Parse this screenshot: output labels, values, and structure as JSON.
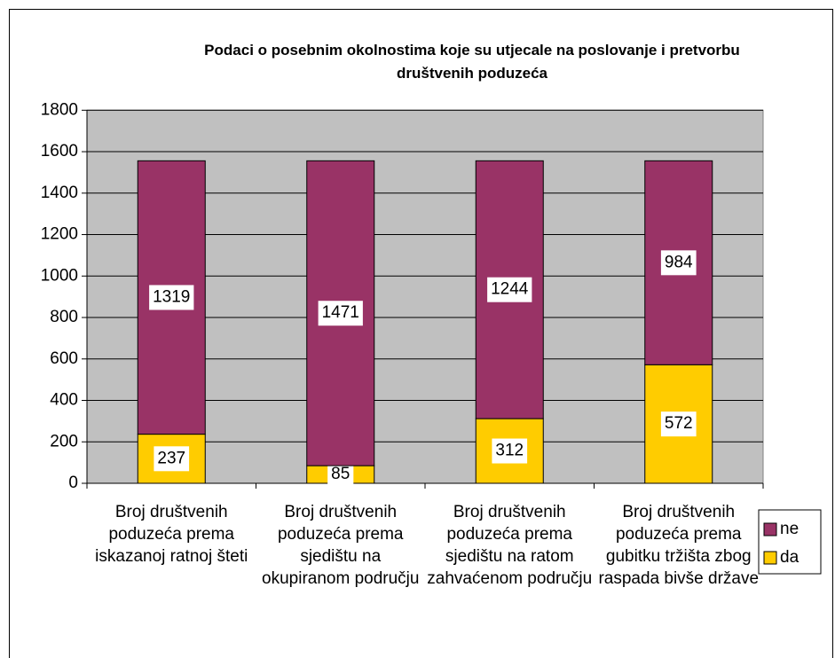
{
  "chart_data": {
    "type": "stacked_bar",
    "title": "Podaci o posebnim okolnostima koje su utjecale na poslovanje i pretvorbu društvenih poduzeća",
    "categories": [
      "Broj društvenih poduzeća prema iskazanoj ratnoj šteti",
      "Broj društvenih poduzeća prema sjedištu na okupiranom području",
      "Broj društvenih poduzeća prema sjedištu na ratom zahvaćenom području",
      "Broj društvenih poduzeća prema gubitku tržišta zbog raspada bivše države"
    ],
    "series": [
      {
        "name": "da",
        "color": "#ffcc00",
        "values": [
          237,
          85,
          312,
          572
        ]
      },
      {
        "name": "ne",
        "color": "#993366",
        "values": [
          1319,
          1471,
          1244,
          984
        ]
      }
    ],
    "ylim": [
      0,
      1800
    ],
    "yticks": [
      0,
      200,
      400,
      600,
      800,
      1000,
      1200,
      1400,
      1600,
      1800
    ],
    "grid": true,
    "legend": "right"
  }
}
